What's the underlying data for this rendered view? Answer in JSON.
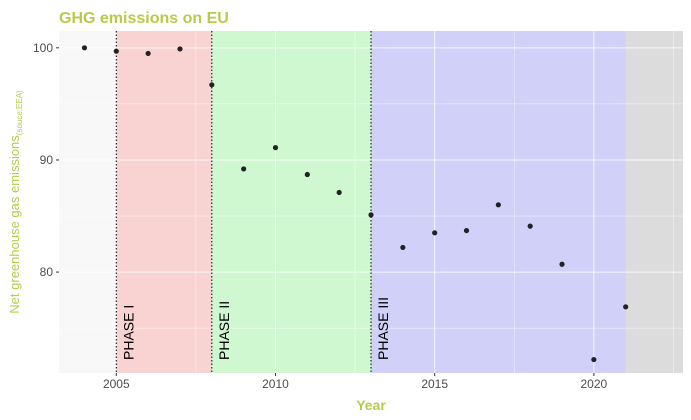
{
  "chart_data": {
    "type": "scatter",
    "title": "GHG emissions on EU",
    "xlabel": "Year",
    "ylabel_main": "Net greenhouse gas emissions",
    "ylabel_subscript": "(souce:EEA)",
    "xlim": [
      2003.2,
      2022.8
    ],
    "ylim": [
      71,
      101.5
    ],
    "x_ticks": [
      2005,
      2010,
      2015,
      2020
    ],
    "y_ticks": [
      80,
      90,
      100
    ],
    "grid": true,
    "colors": {
      "title": "#b5cc4b",
      "axis_label": "#b5cc4b",
      "panel_background": "#dcdcdc",
      "phase_0_band": "#f8f8f8",
      "phase_1_band": "#f9d2d2",
      "phase_2_band": "#cff8d0",
      "phase_3_band": "#d0d0f8",
      "point": "#222222"
    },
    "phases": [
      {
        "label": "PHASE I",
        "start": 2005,
        "end": 2008
      },
      {
        "label": "PHASE II",
        "start": 2008,
        "end": 2013
      },
      {
        "label": "PHASE III",
        "start": 2013,
        "end": 2021
      }
    ],
    "pre_phase_band": {
      "start": 2003.2,
      "end": 2005
    },
    "points": {
      "x": [
        2004,
        2005,
        2006,
        2007,
        2008,
        2009,
        2010,
        2011,
        2012,
        2013,
        2014,
        2015,
        2016,
        2017,
        2018,
        2019,
        2020,
        2021
      ],
      "y": [
        100.0,
        99.7,
        99.5,
        99.9,
        96.7,
        89.2,
        91.1,
        88.7,
        87.1,
        85.1,
        82.2,
        83.5,
        83.7,
        86.0,
        84.1,
        80.7,
        72.2,
        76.9
      ]
    }
  }
}
